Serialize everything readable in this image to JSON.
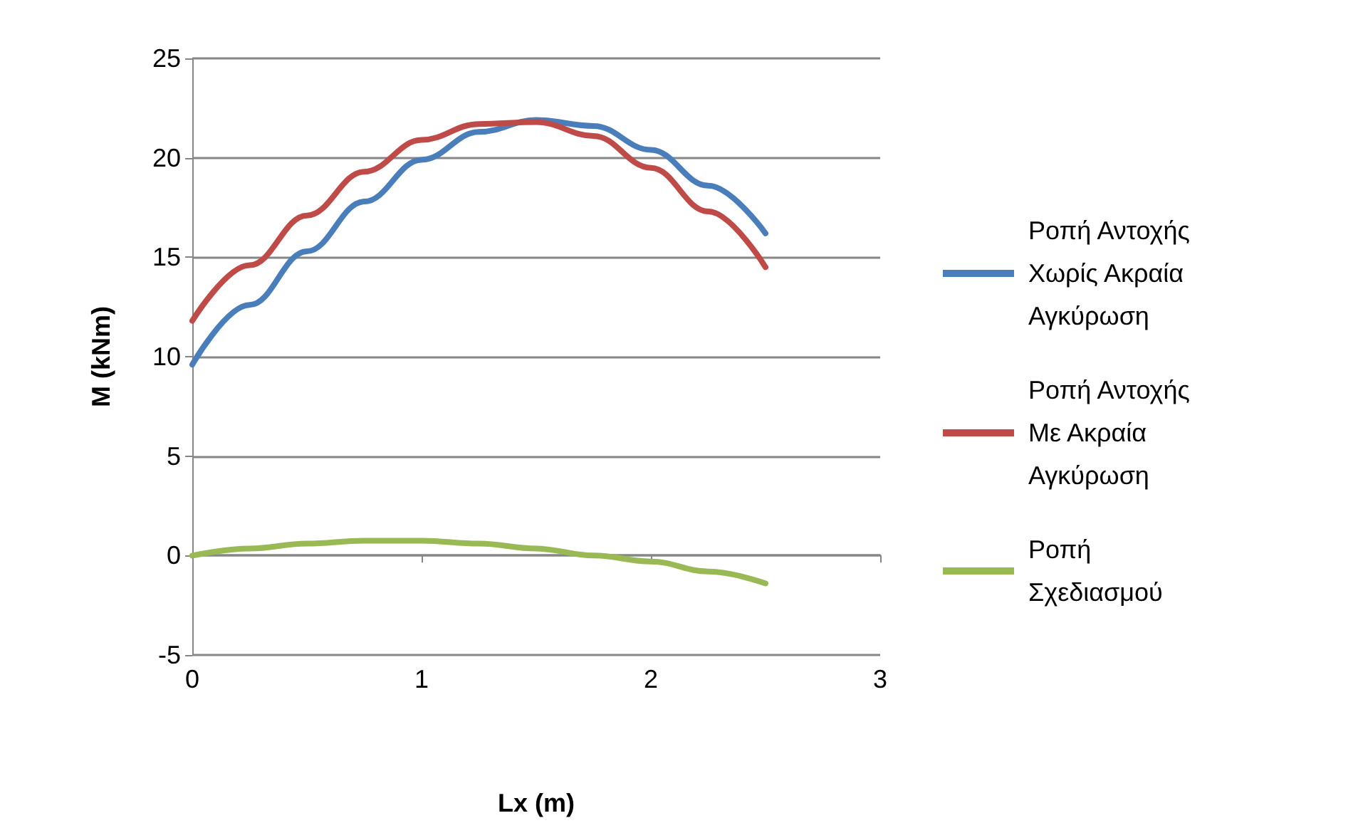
{
  "chart_data": {
    "type": "line",
    "xlabel": "Lx (m)",
    "ylabel": "M (kNm)",
    "x": [
      0,
      0.25,
      0.5,
      0.75,
      1,
      1.25,
      1.5,
      1.75,
      2,
      2.25,
      2.5
    ],
    "series": [
      {
        "name": "Ροπή Αντοχής Χωρίς Ακραία Αγκύρωση",
        "color": "#4a7ebb",
        "values": [
          9.6,
          12.6,
          15.3,
          17.8,
          19.9,
          21.3,
          21.9,
          21.6,
          20.4,
          18.6,
          16.2
        ]
      },
      {
        "name": "Ροπή Αντοχής Με Ακραία Αγκύρωση",
        "color": "#be4b48",
        "values": [
          11.8,
          14.6,
          17.1,
          19.3,
          20.9,
          21.7,
          21.8,
          21.1,
          19.5,
          17.3,
          14.5
        ]
      },
      {
        "name": "Ροπή Σχεδιασμού",
        "color": "#98b954",
        "values": [
          0,
          0.35,
          0.6,
          0.75,
          0.75,
          0.6,
          0.35,
          0,
          -0.3,
          -0.8,
          -1.4
        ]
      }
    ],
    "xlim": [
      0,
      3
    ],
    "xticks": [
      0,
      1,
      2,
      3
    ],
    "ylim": [
      -5,
      25
    ],
    "yticks": [
      -5,
      0,
      5,
      10,
      15,
      20,
      25
    ],
    "grid": "y",
    "legend": "right",
    "marker": "none",
    "line_style": "solid"
  }
}
